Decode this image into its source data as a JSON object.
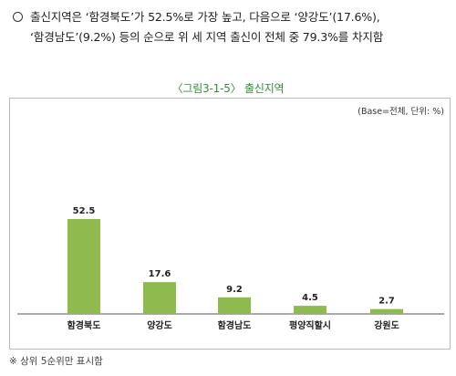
{
  "summary": {
    "line1": "출신지역은 ‘함경북도’가 52.5%로 가장 높고, 다음으로 ‘양강도’(17.6%),",
    "line2": "‘함경남도’(9.2%) 등의 순으로 위 세 지역 출신이 전체 중 79.3%를 차지함"
  },
  "figure": {
    "title": "〈그림3-1-5〉 출신지역",
    "unit_note": "(Base=전체, 단위: %)",
    "footnote": "※ 상위 5순위만 표시함"
  },
  "colors": {
    "bar": "#8fba4e",
    "title": "#3a8a3a"
  },
  "chart_data": {
    "type": "bar",
    "title": "〈그림3-1-5〉 출신지역",
    "categories": [
      "함경북도",
      "양강도",
      "함경남도",
      "평양직할시",
      "강원도"
    ],
    "values": [
      52.5,
      17.6,
      9.2,
      4.5,
      2.7
    ],
    "value_labels": [
      "52.5",
      "17.6",
      "9.2",
      "4.5",
      "2.7"
    ],
    "unit": "%",
    "ylim": [
      0,
      60
    ],
    "grid": false,
    "legend": "none"
  }
}
